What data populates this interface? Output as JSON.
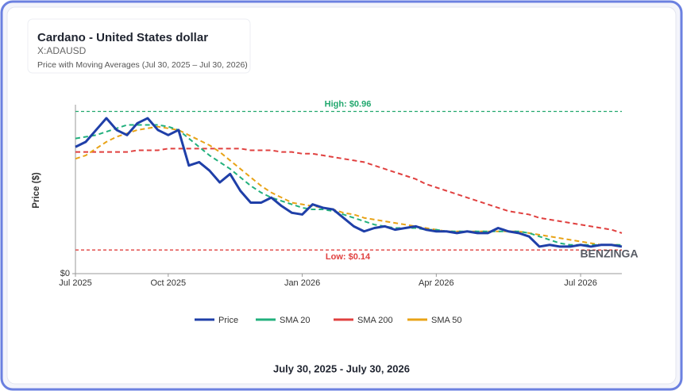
{
  "chart_data": {
    "type": "line",
    "title": "Cardano - United States dollar",
    "ticker": "X:ADAUSD",
    "subtitle": "Price with Moving Averages (Jul 30, 2025 – Jul 30, 2026)",
    "ylabel": "Price ($)",
    "footer": "July 30, 2025 - July 30, 2026",
    "watermark": "BENZINGA",
    "categories": [
      "Jul 2025",
      null,
      null,
      null,
      null,
      null,
      null,
      null,
      null,
      "Oct 2025",
      null,
      null,
      null,
      null,
      null,
      null,
      null,
      null,
      null,
      null,
      null,
      null,
      "Jan 2026",
      null,
      null,
      null,
      null,
      null,
      null,
      null,
      null,
      null,
      null,
      null,
      null,
      "Apr 2026",
      null,
      null,
      null,
      null,
      null,
      null,
      null,
      null,
      null,
      null,
      null,
      null,
      null,
      "Jul 2026",
      null,
      null,
      null,
      null
    ],
    "series": [
      {
        "name": "Price",
        "color": "#1f3fa8",
        "dashed": false,
        "values": [
          0.75,
          0.78,
          0.85,
          0.92,
          0.85,
          0.82,
          0.89,
          0.92,
          0.85,
          0.82,
          0.85,
          0.64,
          0.66,
          0.61,
          0.54,
          0.59,
          0.49,
          0.42,
          0.42,
          0.45,
          0.4,
          0.36,
          0.35,
          0.41,
          0.39,
          0.38,
          0.33,
          0.28,
          0.25,
          0.27,
          0.28,
          0.26,
          0.27,
          0.28,
          0.26,
          0.25,
          0.25,
          0.24,
          0.25,
          0.24,
          0.24,
          0.27,
          0.25,
          0.24,
          0.22,
          0.16,
          0.17,
          0.16,
          0.16,
          0.17,
          0.16,
          0.17,
          0.17,
          0.16
        ]
      },
      {
        "name": "SMA 20",
        "color": "#22b07d",
        "dashed": true,
        "values": [
          0.8,
          0.81,
          0.82,
          0.84,
          0.86,
          0.88,
          0.88,
          0.88,
          0.88,
          0.87,
          0.85,
          0.8,
          0.75,
          0.7,
          0.66,
          0.62,
          0.57,
          0.52,
          0.48,
          0.45,
          0.43,
          0.41,
          0.39,
          0.38,
          0.38,
          0.37,
          0.35,
          0.33,
          0.31,
          0.29,
          0.28,
          0.27,
          0.27,
          0.27,
          0.26,
          0.26,
          0.25,
          0.25,
          0.25,
          0.25,
          0.25,
          0.25,
          0.25,
          0.25,
          0.24,
          0.22,
          0.2,
          0.18,
          0.17,
          0.17,
          0.17,
          0.17,
          0.17,
          0.17
        ]
      },
      {
        "name": "SMA 200",
        "color": "#e0403f",
        "dashed": true,
        "values": [
          0.72,
          0.72,
          0.72,
          0.72,
          0.72,
          0.72,
          0.73,
          0.73,
          0.73,
          0.74,
          0.74,
          0.74,
          0.74,
          0.74,
          0.74,
          0.74,
          0.74,
          0.73,
          0.73,
          0.73,
          0.72,
          0.72,
          0.71,
          0.71,
          0.7,
          0.69,
          0.68,
          0.67,
          0.66,
          0.64,
          0.62,
          0.6,
          0.58,
          0.56,
          0.53,
          0.51,
          0.49,
          0.47,
          0.45,
          0.43,
          0.41,
          0.39,
          0.37,
          0.36,
          0.35,
          0.33,
          0.32,
          0.31,
          0.3,
          0.29,
          0.28,
          0.27,
          0.26,
          0.24
        ]
      },
      {
        "name": "SMA 50",
        "color": "#e8a317",
        "dashed": true,
        "values": [
          0.68,
          0.7,
          0.74,
          0.78,
          0.81,
          0.83,
          0.85,
          0.86,
          0.87,
          0.86,
          0.85,
          0.82,
          0.79,
          0.76,
          0.72,
          0.67,
          0.62,
          0.57,
          0.52,
          0.48,
          0.45,
          0.42,
          0.41,
          0.4,
          0.39,
          0.38,
          0.36,
          0.35,
          0.33,
          0.32,
          0.31,
          0.3,
          0.29,
          0.28,
          0.27,
          0.26,
          0.25,
          0.25,
          0.25,
          0.25,
          0.25,
          0.25,
          0.25,
          0.25,
          0.24,
          0.23,
          0.22,
          0.21,
          0.2,
          0.19,
          0.18,
          0.17,
          0.17,
          0.17
        ]
      }
    ],
    "high": {
      "value": 0.96,
      "label": "High: $0.96",
      "color": "#22a86e"
    },
    "low": {
      "value": 0.14,
      "label": "Low: $0.14",
      "color": "#e0403f"
    },
    "ylim": [
      0,
      1
    ],
    "yticks": [
      {
        "value": 0,
        "label": "$0"
      }
    ]
  }
}
